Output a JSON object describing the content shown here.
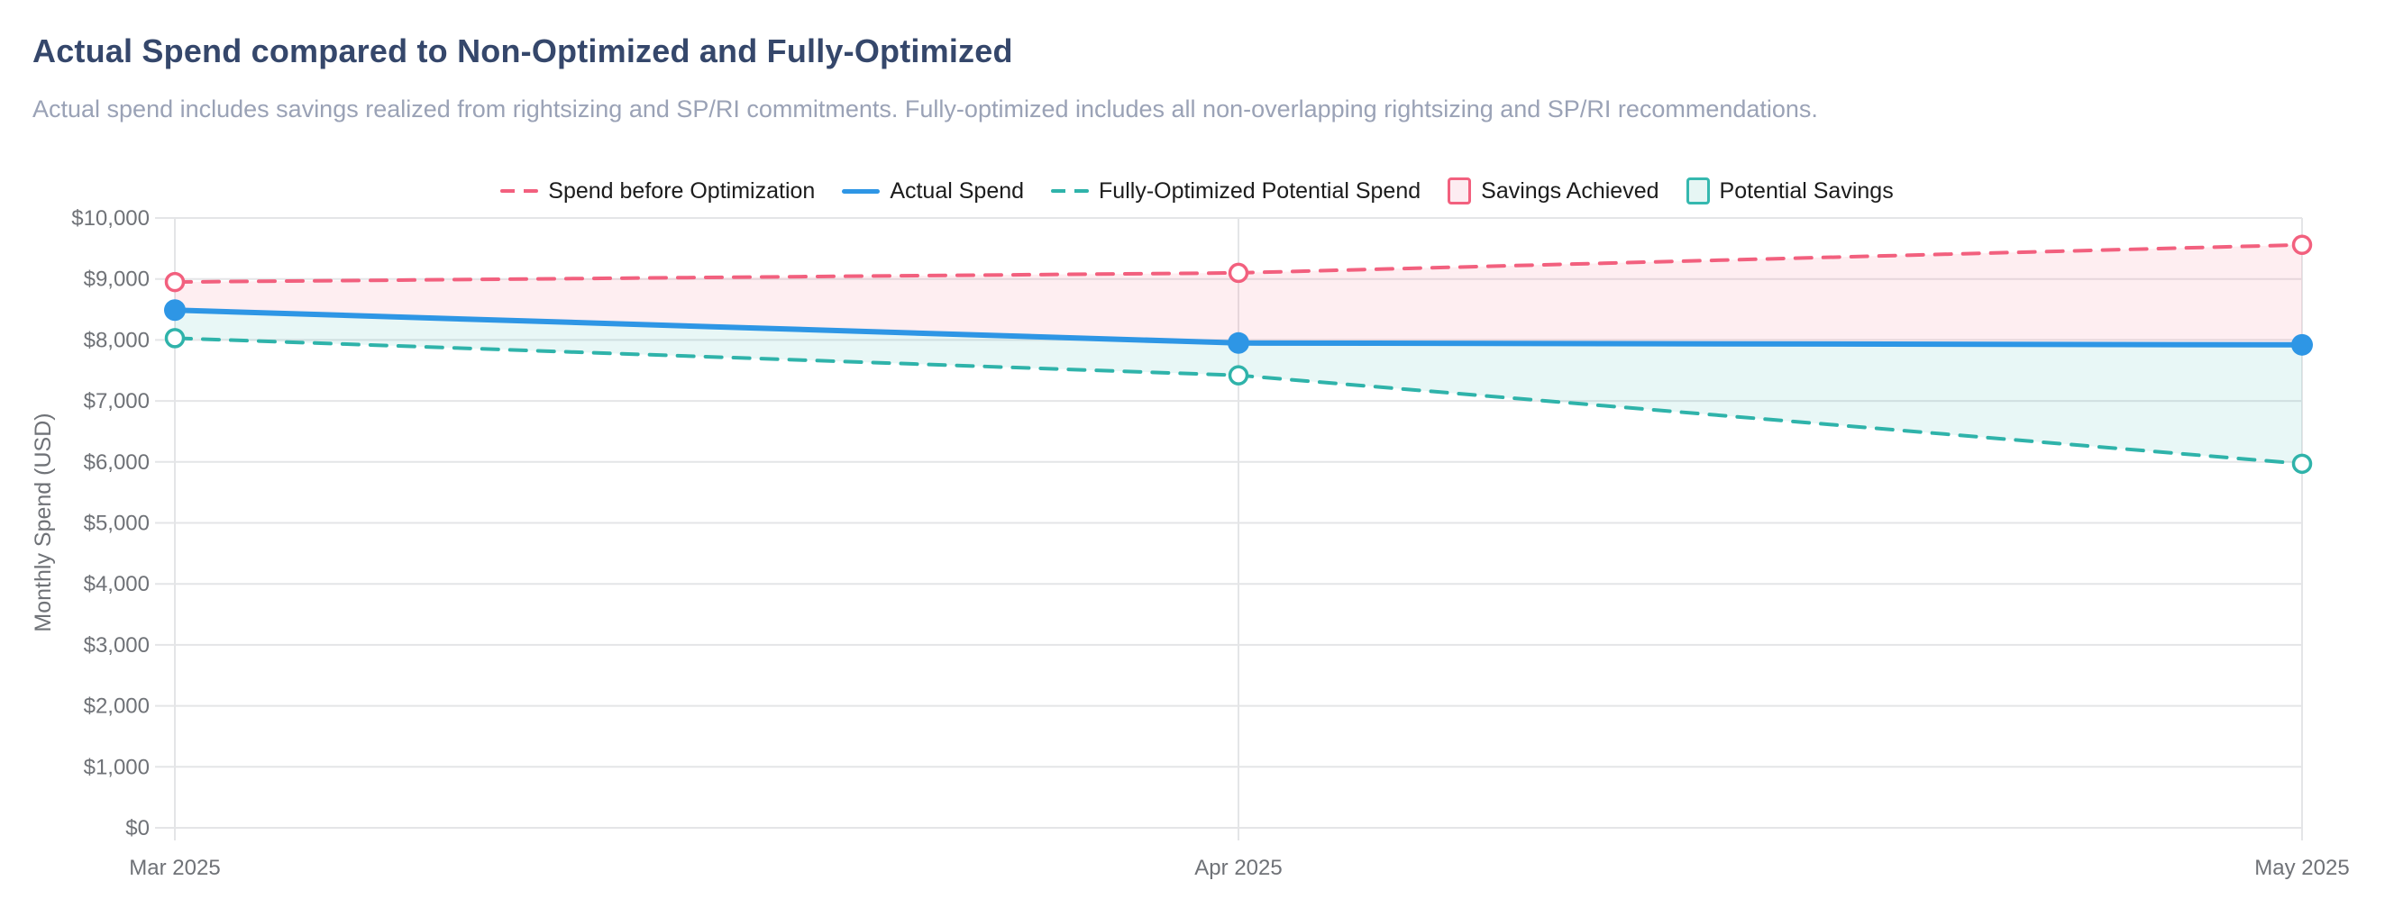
{
  "header": {
    "title": "Actual Spend compared to Non-Optimized and Fully-Optimized",
    "subtitle": "Actual spend includes savings realized from rightsizing and SP/RI commitments. Fully-optimized includes all non-overlapping rightsizing and SP/RI recommendations."
  },
  "colors": {
    "title": "#35476B",
    "subtitle": "#9AA2B6",
    "spend_before": "#F2607E",
    "actual_spend": "#2E96E5",
    "fully_optimized": "#2FB3AA",
    "savings_achieved_fill": "#FDECF1",
    "potential_savings_fill": "#E9F6F4",
    "grid": "#E4E5E7",
    "axis_text": "#6F7277",
    "legend_text": "#1C1C1C"
  },
  "legend": {
    "items": [
      {
        "label": "Spend before Optimization",
        "type": "dashed-line",
        "color": "#F2607E"
      },
      {
        "label": "Actual Spend",
        "type": "solid-line",
        "color": "#2E96E5"
      },
      {
        "label": "Fully-Optimized Potential Spend",
        "type": "dashed-line",
        "color": "#2FB3AA"
      },
      {
        "label": "Savings Achieved",
        "type": "area",
        "border": "#F2607E",
        "fill": "#FDECF1"
      },
      {
        "label": "Potential Savings",
        "type": "area",
        "border": "#35B8AF",
        "fill": "#E6F6F4"
      }
    ]
  },
  "chart_data": {
    "type": "line",
    "title": "Actual Spend compared to Non-Optimized and Fully-Optimized",
    "x": [
      "Mar 2025",
      "Apr 2025",
      "May 2025"
    ],
    "series": [
      {
        "name": "Spend before Optimization",
        "values": [
          8950,
          9100,
          9560
        ],
        "style": "dashed",
        "color": "#F2607E",
        "marker": "open"
      },
      {
        "name": "Actual Spend",
        "values": [
          8490,
          7950,
          7920
        ],
        "style": "solid",
        "color": "#2E96E5",
        "marker": "filled"
      },
      {
        "name": "Fully-Optimized Potential Spend",
        "values": [
          8030,
          7420,
          5970
        ],
        "style": "dashed",
        "color": "#2FB3AA",
        "marker": "open"
      }
    ],
    "areas": [
      {
        "name": "Savings Achieved",
        "upper": "Spend before Optimization",
        "lower": "Actual Spend",
        "color": "#F2607E",
        "opacity": 0.11
      },
      {
        "name": "Potential Savings",
        "upper": "Actual Spend",
        "lower": "Fully-Optimized Potential Spend",
        "color": "#2FB3AA",
        "opacity": 0.11
      }
    ],
    "xlabel": "",
    "ylabel": "Monthly Spend (USD)",
    "ylim": [
      0,
      10000
    ],
    "ytick_step": 1000,
    "ytick_labels": [
      "$0",
      "$1,000",
      "$2,000",
      "$3,000",
      "$4,000",
      "$5,000",
      "$6,000",
      "$7,000",
      "$8,000",
      "$9,000",
      "$10,000"
    ],
    "grid": true,
    "legend_position": "top-center"
  }
}
